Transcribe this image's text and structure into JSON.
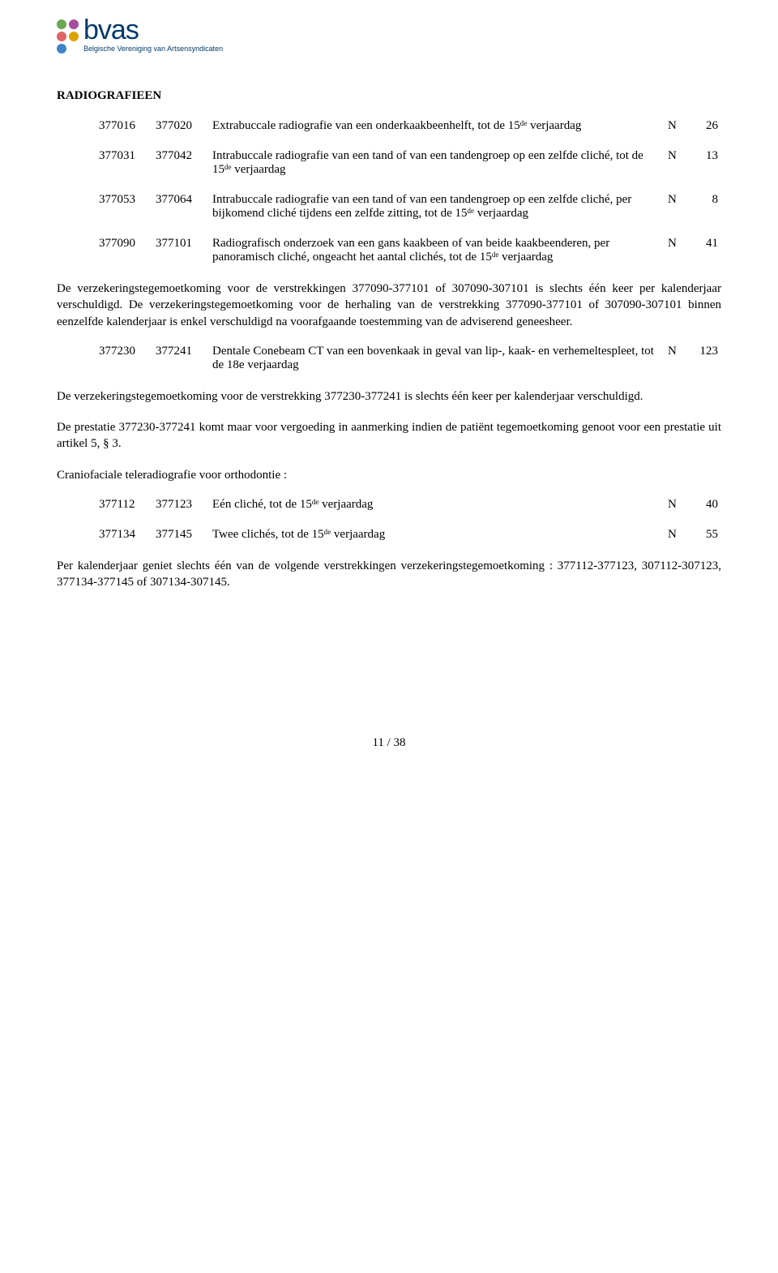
{
  "logo": {
    "name": "bvas",
    "subtitle": "Belgische Vereniging van\nArtsensyndicaten",
    "dot_colors": [
      "#6aa84f",
      "#a64d9e",
      "#e06666",
      "#dba400",
      "#3d85c6"
    ]
  },
  "section_title": "RADIOGRAFIEEN",
  "rows1": [
    {
      "c1": "377016",
      "c2": "377020",
      "desc": "Extrabuccale radiografie van een onderkaakbeenhelft, tot de 15ᵈᵉ verjaardag",
      "letter": "N",
      "num": "26"
    },
    {
      "c1": "377031",
      "c2": "377042",
      "desc": "Intrabuccale radiografie van een tand of van een tandengroep op een zelfde cliché, tot de 15ᵈᵉ verjaardag",
      "letter": "N",
      "num": "13"
    },
    {
      "c1": "377053",
      "c2": "377064",
      "desc": "Intrabuccale radiografie van een tand of van een tandengroep op een zelfde cliché, per bijkomend cliché tijdens een zelfde zitting, tot de 15ᵈᵉ verjaardag",
      "letter": "N",
      "num": "8"
    },
    {
      "c1": "377090",
      "c2": "377101",
      "desc": "Radiografisch onderzoek van een gans kaakbeen of van beide kaakbeenderen, per panoramisch cliché, ongeacht het aantal clichés, tot de 15ᵈᵉ verjaardag",
      "letter": "N",
      "num": "41"
    }
  ],
  "para1": "De verzekeringstegemoetkoming voor de verstrekkingen 377090-377101 of 307090-307101 is slechts één keer per kalenderjaar verschuldigd. De verzekeringstegemoetkoming voor de herhaling van de verstrekking 377090-377101 of 307090-307101 binnen eenzelfde kalenderjaar is enkel verschuldigd na voorafgaande toestemming van de adviserend geneesheer.",
  "rows2": [
    {
      "c1": "377230",
      "c2": "377241",
      "desc": "Dentale Conebeam CT van een bovenkaak in geval van lip-, kaak- en verhemeltespleet, tot de 18e verjaardag",
      "letter": "N",
      "num": "123"
    }
  ],
  "para2": "De verzekeringstegemoetkoming voor de verstrekking 377230-377241 is slechts één keer per kalenderjaar verschuldigd.",
  "para3": "De prestatie 377230-377241 komt maar voor vergoeding in aanmerking indien de patiënt tegemoetkoming genoot voor een prestatie uit artikel 5, § 3.",
  "para4": "Craniofaciale teleradiografie voor orthodontie :",
  "rows3": [
    {
      "c1": "377112",
      "c2": "377123",
      "desc": "Eén cliché, tot de 15ᵈᵉ verjaardag",
      "letter": "N",
      "num": "40"
    },
    {
      "c1": "377134",
      "c2": "377145",
      "desc": "Twee clichés, tot de 15ᵈᵉ verjaardag",
      "letter": "N",
      "num": "55"
    }
  ],
  "para5": "Per kalenderjaar geniet slechts één van de volgende verstrekkingen verzekeringstegemoetkoming : 377112-377123, 307112-307123, 377134-377145 of 307134-307145.",
  "footer": "11 / 38"
}
